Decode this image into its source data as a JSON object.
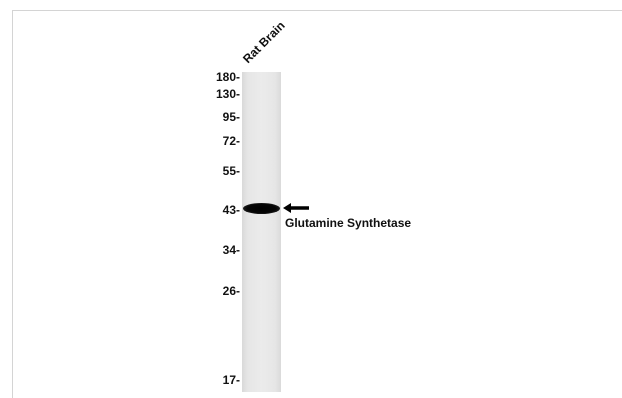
{
  "lane_label": "Rat Brain",
  "markers": [
    "180-",
    "130-",
    "95-",
    "72-",
    "55-",
    "43-",
    "34-",
    "26-",
    "17-"
  ],
  "protein_label": "Glutamine Synthetase"
}
